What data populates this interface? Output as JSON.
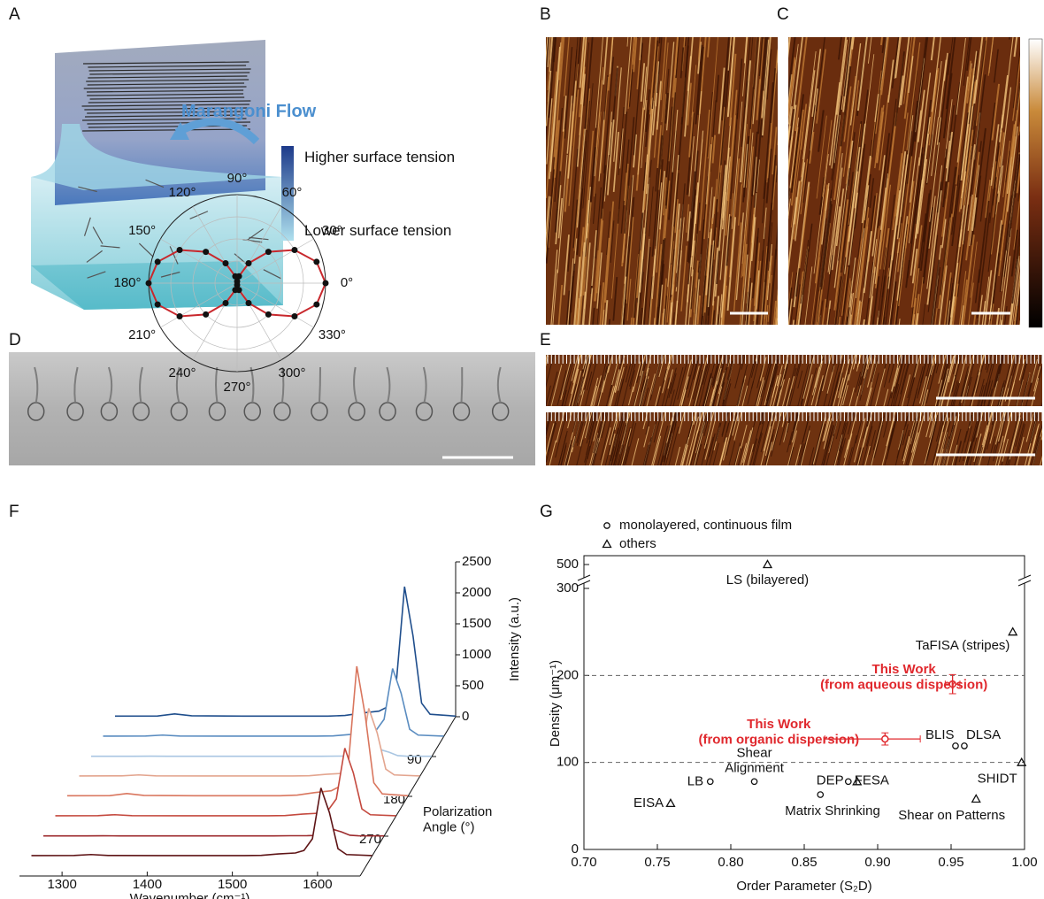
{
  "panel_labels": [
    "A",
    "B",
    "C",
    "D",
    "E",
    "F",
    "G"
  ],
  "diagram": {
    "flow_label": "Marangoni Flow",
    "high_label": "Higher surface tension",
    "low_label": "Lower surface tension"
  },
  "chart_data": [
    {
      "type": "polar",
      "x": [
        0,
        15,
        30,
        45,
        60,
        75,
        90,
        105,
        120,
        135,
        150,
        165,
        180,
        195,
        210,
        225,
        240,
        255,
        270,
        285,
        300,
        315,
        330,
        345
      ],
      "values": [
        1.0,
        0.93,
        0.75,
        0.5,
        0.26,
        0.08,
        0.02,
        0.08,
        0.26,
        0.5,
        0.75,
        0.93,
        1.0,
        0.93,
        0.75,
        0.5,
        0.26,
        0.08,
        0.02,
        0.08,
        0.26,
        0.5,
        0.75,
        0.93
      ],
      "color": "#c8282d",
      "marker_color": "#111111",
      "xticks": [
        {
          "value": 0,
          "label": "0°"
        },
        {
          "value": 30,
          "label": "30°"
        },
        {
          "value": 60,
          "label": "60°"
        },
        {
          "value": 90,
          "label": "90°"
        },
        {
          "value": 120,
          "label": "120°"
        },
        {
          "value": 150,
          "label": "150°"
        },
        {
          "value": 180,
          "label": "180°"
        },
        {
          "value": 210,
          "label": "210°"
        },
        {
          "value": 240,
          "label": "240°"
        },
        {
          "value": 270,
          "label": "270°"
        },
        {
          "value": 300,
          "label": "300°"
        },
        {
          "value": 330,
          "label": "330°"
        }
      ]
    },
    {
      "type": "waterfall",
      "x": [
        1250,
        1300,
        1320,
        1340,
        1400,
        1500,
        1520,
        1540,
        1560,
        1570,
        1580,
        1590,
        1600,
        1610,
        1620,
        1650
      ],
      "series": [
        {
          "angle": 0,
          "color": "#1f4e8c",
          "values": [
            10,
            12,
            45,
            15,
            10,
            10,
            20,
            60,
            90,
            160,
            500,
            2100,
            1300,
            220,
            40,
            10
          ]
        },
        {
          "angle": 45,
          "color": "#5a8cc0",
          "values": [
            8,
            10,
            25,
            10,
            8,
            8,
            12,
            35,
            50,
            90,
            280,
            1100,
            700,
            120,
            25,
            8
          ]
        },
        {
          "angle": 90,
          "color": "#a9c6e2",
          "values": [
            5,
            5,
            6,
            5,
            5,
            5,
            5,
            7,
            8,
            12,
            30,
            110,
            70,
            15,
            6,
            5
          ]
        },
        {
          "angle": 135,
          "color": "#e3a58f",
          "values": [
            8,
            10,
            25,
            10,
            8,
            8,
            12,
            35,
            50,
            90,
            280,
            1100,
            700,
            120,
            25,
            8
          ]
        },
        {
          "angle": 180,
          "color": "#d9765e",
          "values": [
            10,
            12,
            45,
            15,
            10,
            10,
            20,
            60,
            90,
            160,
            500,
            2100,
            1300,
            220,
            40,
            10
          ]
        },
        {
          "angle": 225,
          "color": "#c4493e",
          "values": [
            8,
            10,
            25,
            10,
            8,
            8,
            12,
            35,
            50,
            90,
            280,
            1100,
            700,
            120,
            25,
            8
          ]
        },
        {
          "angle": 270,
          "color": "#9c2a2c",
          "values": [
            5,
            5,
            6,
            5,
            5,
            5,
            5,
            7,
            8,
            12,
            30,
            110,
            70,
            15,
            6,
            5
          ]
        },
        {
          "angle": 315,
          "color": "#5e1416",
          "values": [
            8,
            10,
            25,
            10,
            8,
            8,
            12,
            35,
            50,
            90,
            280,
            1100,
            700,
            120,
            25,
            8
          ]
        }
      ],
      "xlim": [
        1250,
        1650
      ],
      "xticks": [
        1300,
        1400,
        1500,
        1600
      ],
      "ylim": [
        0,
        2500
      ],
      "yticks": [
        0,
        500,
        1000,
        1500,
        2000,
        2500
      ],
      "zlim": [
        0,
        360
      ],
      "zticks": [
        90,
        180,
        270
      ],
      "xlabel": "Wavenumber (cm⁻¹)",
      "ylabel": "Intensity (a.u.)",
      "zlabel": "Polarization\nAngle (°)"
    },
    {
      "type": "scatter",
      "series": [
        {
          "name": "monolayered, continuous film",
          "marker": "circle",
          "color": "#111111",
          "x": [
            0.786,
            0.816,
            0.861,
            0.88,
            0.953,
            0.959
          ],
          "values": [
            78,
            78,
            63,
            78,
            119,
            119
          ],
          "labels": [
            "LB",
            "Shear\nAlignment",
            "Matrix Shrinking",
            "DEP",
            "BLIS",
            "DLSA"
          ]
        },
        {
          "name": "others",
          "marker": "triangle",
          "color": "#111111",
          "x": [
            0.825,
            0.759,
            0.886,
            0.992,
            0.967,
            0.998
          ],
          "values": [
            500,
            53,
            78,
            250,
            58,
            100
          ],
          "labels": [
            "LS (bilayered)",
            "EISA",
            "FESA",
            "TaFISA (stripes)",
            "Shear on Patterns",
            "SHIDT"
          ]
        }
      ],
      "highlights": [
        {
          "label": "This Work\n(from aqueous dispersion)",
          "x": 0.951,
          "value": 190,
          "xerr": [
            0.005,
            0.005
          ],
          "yerr": 11,
          "color": "#e0282d"
        },
        {
          "label": "This Work\n(from organic dispersion)",
          "x": 0.905,
          "value": 127,
          "xerr": [
            0.041,
            0.024
          ],
          "yerr": 7,
          "color": "#e0282d"
        }
      ],
      "hlines": [
        100,
        200
      ],
      "xlim": [
        0.7,
        1.0
      ],
      "xticks": [
        {
          "value": 0.7,
          "label": "0.70"
        },
        {
          "value": 0.75,
          "label": "0.75"
        },
        {
          "value": 0.8,
          "label": "0.80"
        },
        {
          "value": 0.85,
          "label": "0.85"
        },
        {
          "value": 0.9,
          "label": "0.90"
        },
        {
          "value": 0.95,
          "label": "0.95"
        },
        {
          "value": 1.0,
          "label": "1.00"
        }
      ],
      "ylim": [
        0,
        500
      ],
      "yticks": [
        0,
        100,
        200,
        300,
        500
      ],
      "xlabel": "Order Parameter (S₂D)",
      "ylabel": "Density (μm⁻¹)"
    }
  ]
}
